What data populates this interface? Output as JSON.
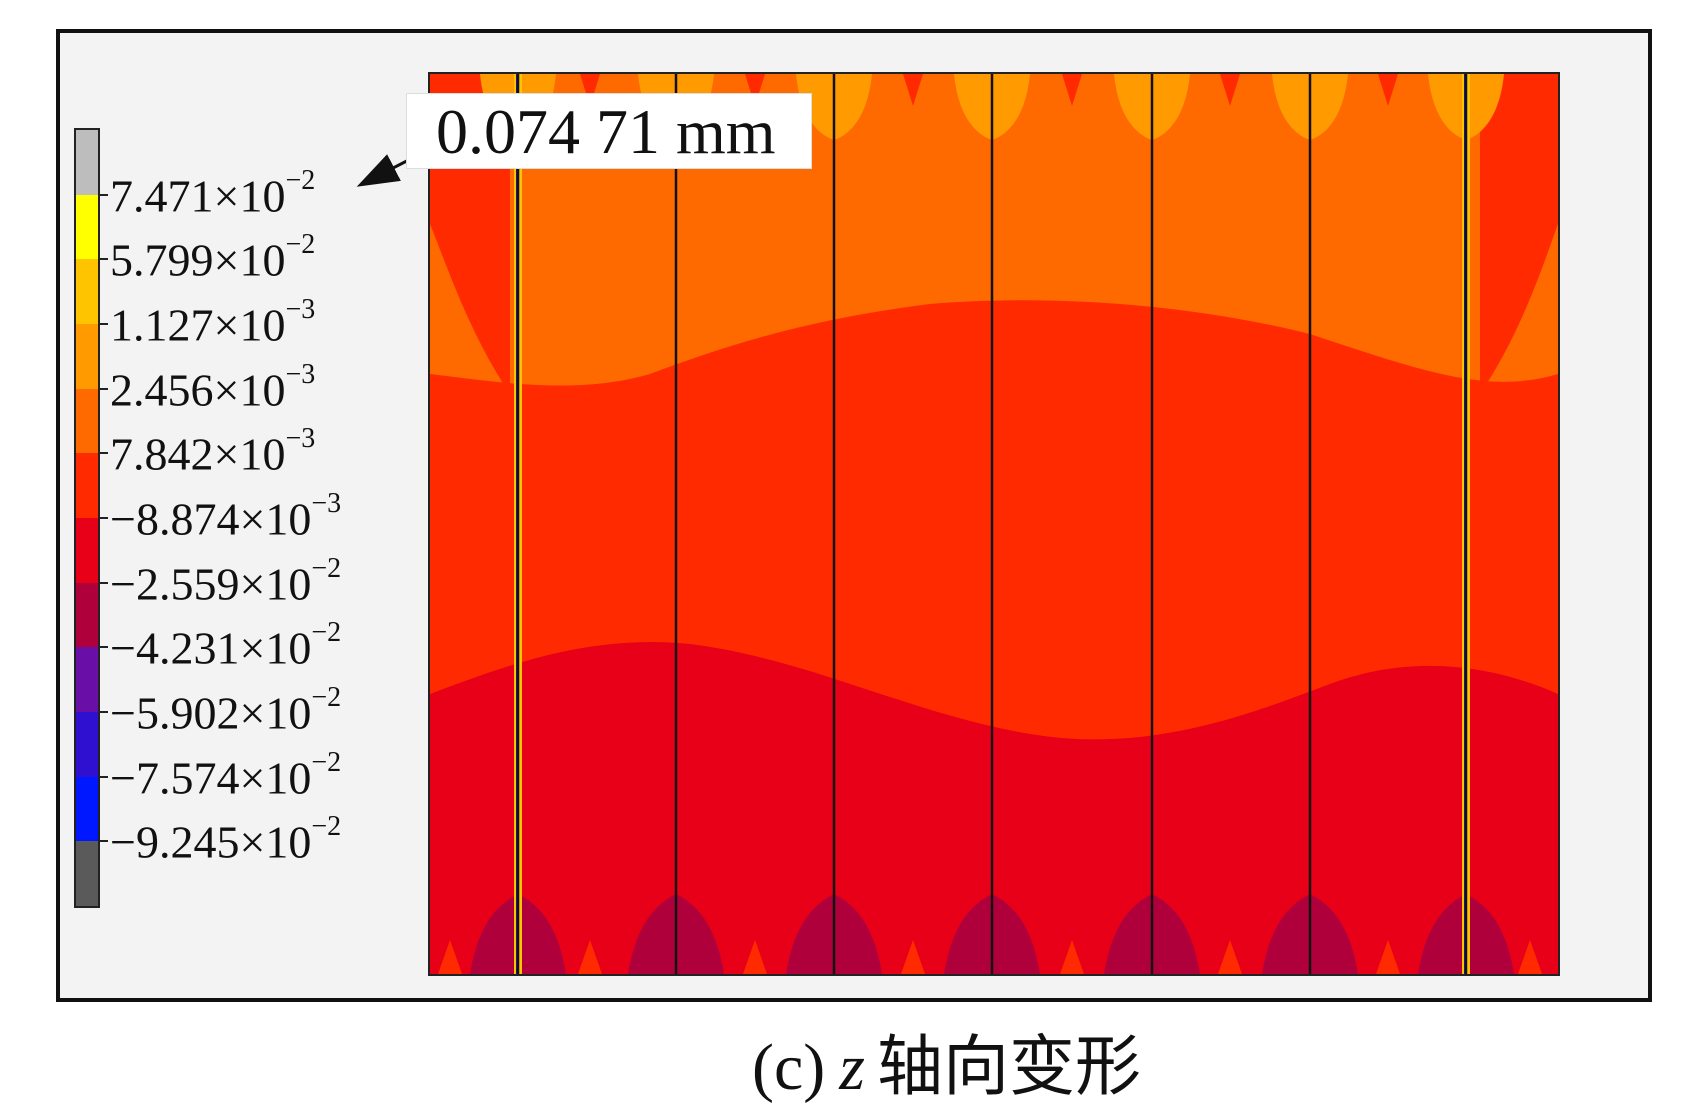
{
  "figure": {
    "caption_prefix": "(c)",
    "caption_axis": "z",
    "caption_rest": "轴向变形",
    "callout_value": "0.074 71 mm"
  },
  "legend": {
    "levels": [
      {
        "mantissa": "7.471",
        "exp": "−2"
      },
      {
        "mantissa": "5.799",
        "exp": "−2"
      },
      {
        "mantissa": "1.127",
        "exp": "−3"
      },
      {
        "mantissa": "2.456",
        "exp": "−3"
      },
      {
        "mantissa": "7.842",
        "exp": "−3"
      },
      {
        "mantissa": "−8.874",
        "exp": "−3"
      },
      {
        "mantissa": "−2.559",
        "exp": "−2"
      },
      {
        "mantissa": "−4.231",
        "exp": "−2"
      },
      {
        "mantissa": "−5.902",
        "exp": "−2"
      },
      {
        "mantissa": "−7.574",
        "exp": "−2"
      },
      {
        "mantissa": "−9.245",
        "exp": "−2"
      }
    ],
    "times_sign": "×10",
    "colors": [
      "#bdbdbd",
      "#ffff00",
      "#ffc400",
      "#ff9a00",
      "#ff6a00",
      "#ff2a00",
      "#e80018",
      "#b0003c",
      "#6a0ea8",
      "#3010d0",
      "#0018ff",
      "#5a5a5a"
    ]
  },
  "colors": {
    "frame_bg": "#f3f3f3",
    "plate_main": "#ff2a00",
    "plate_upper": "#ff6a00",
    "plate_top": "#ff9a00",
    "plate_lower": "#e80018",
    "plate_bottom": "#b0003c"
  }
}
